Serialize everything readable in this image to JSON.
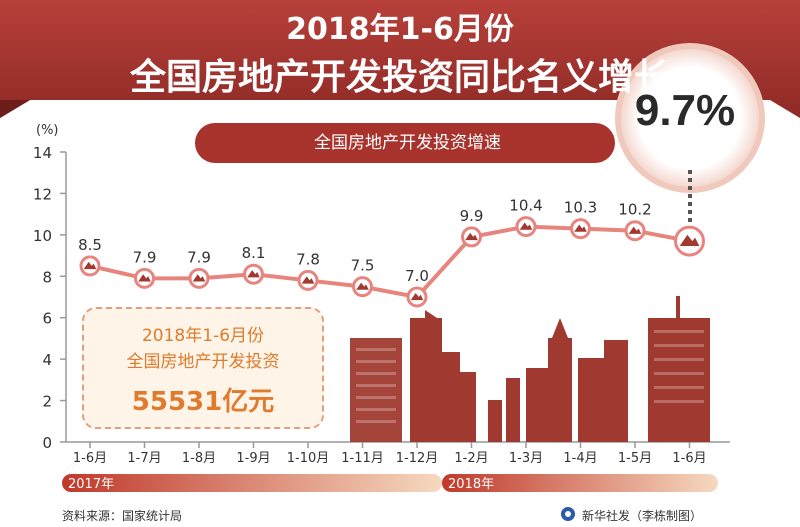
{
  "header": {
    "title_line1": "2018年1-6月份",
    "title_line2": "全国房地产开发投资同比名义增长",
    "highlight_value": "9.7%"
  },
  "chart_data": {
    "type": "line",
    "title": "全国房地产开发投资增速",
    "ylabel": "(%)",
    "ylim": [
      0,
      14
    ],
    "yticks": [
      "0",
      "2",
      "4",
      "6",
      "8",
      "10",
      "12",
      "14"
    ],
    "categories": [
      "1-6月",
      "1-7月",
      "1-8月",
      "1-9月",
      "1-10月",
      "1-11月",
      "1-12月",
      "1-2月",
      "1-3月",
      "1-4月",
      "1-5月",
      "1-6月"
    ],
    "values": [
      8.5,
      7.9,
      7.9,
      8.1,
      7.8,
      7.5,
      7.0,
      9.9,
      10.4,
      10.3,
      10.2,
      9.7
    ],
    "data_labels": [
      "8.5",
      "7.9",
      "7.9",
      "8.1",
      "7.8",
      "7.5",
      "7.0",
      "9.9",
      "10.4",
      "10.3",
      "10.2",
      ""
    ],
    "year_labels": [
      "2017年",
      "2018年"
    ],
    "grid": false,
    "colors": {
      "line": "#e8847e",
      "banner": "#a8322c",
      "building": "#a03a30",
      "accent": "#e07a2c"
    }
  },
  "note": {
    "line1": "2018年1-6月份",
    "line2": "全国房地产开发投资",
    "value": "55531亿元"
  },
  "footer": {
    "source": "资料来源：国家统计局",
    "credit": "新华社发（李栋制图）"
  }
}
